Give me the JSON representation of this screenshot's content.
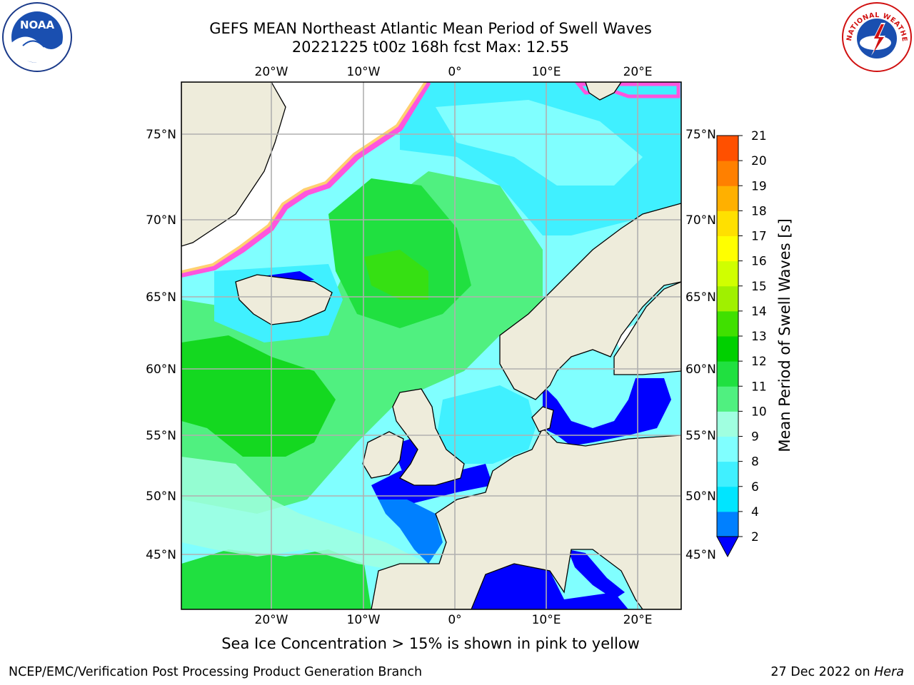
{
  "header": {
    "title_line1": "GEFS MEAN Northeast Atlantic Mean Period of Swell Waves",
    "title_line2": "20221225 t00z 168h fcst   Max: 12.55"
  },
  "map": {
    "lon_ticks": [
      "20°W",
      "10°W",
      "0°",
      "10°E",
      "20°E"
    ],
    "lat_ticks": [
      "75°N",
      "70°N",
      "65°N",
      "60°N",
      "55°N",
      "50°N",
      "45°N"
    ],
    "colors": {
      "land": "#eeecdb",
      "ice_free": "#ffffff",
      "sea_ice": "#ff55dd"
    }
  },
  "colorbar": {
    "label": "Mean Period of Swell Waves [s]",
    "ticks": [
      "21",
      "20",
      "19",
      "18",
      "17",
      "16",
      "15",
      "14",
      "13",
      "12",
      "11",
      "10",
      "9",
      "8",
      "6",
      "4",
      "2"
    ],
    "colors": [
      "#0000ff",
      "#0080ff",
      "#00e5ff",
      "#40f0ff",
      "#80ffff",
      "#a0ffe0",
      "#50f080",
      "#20e040",
      "#00d000",
      "#40e000",
      "#a0f000",
      "#d0ff00",
      "#ffff00",
      "#ffe000",
      "#ffb000",
      "#ff8000",
      "#ff5000",
      "#ff2800",
      "#ff0000"
    ]
  },
  "caption": "Sea Ice Concentration > 15% is shown in pink to yellow",
  "footer": {
    "left": "NCEP/EMC/Verification Post Processing Product Generation Branch",
    "date": "27 Dec 2022 on",
    "machine": "Hera"
  },
  "logos": {
    "noaa_text": "NOAA",
    "nws_text": "NATIONAL WEATHER SERVICE"
  }
}
